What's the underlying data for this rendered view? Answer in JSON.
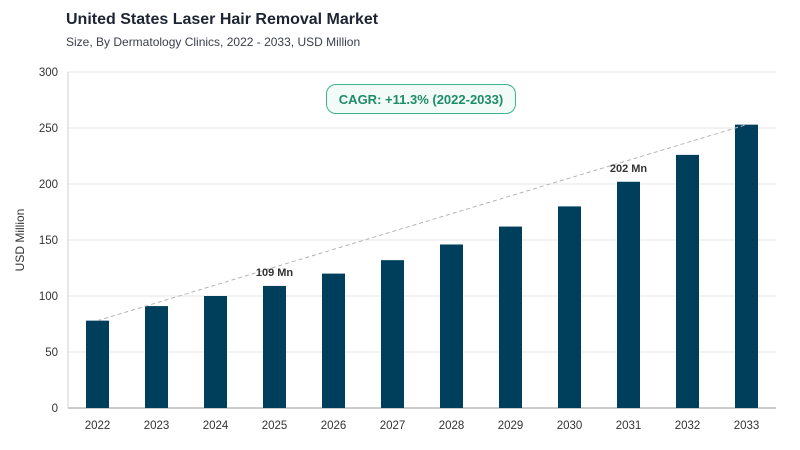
{
  "header": {
    "title": "United States Laser Hair Removal Market",
    "subtitle": "Size, By Dermatology Clinics, 2022 - 2033, USD Million"
  },
  "annotation": {
    "cagr": "CAGR: +11.3% (2022-2033)"
  },
  "colors": {
    "bar": "#003f5c",
    "grid": "#e6e6e6",
    "trend": "#b5b5b5",
    "accent": "#3db58e"
  },
  "chart_data": {
    "type": "bar",
    "title": "United States Laser Hair Removal Market",
    "subtitle": "Size, By Dermatology Clinics, 2022 - 2033, USD Million",
    "xlabel": "",
    "ylabel": "USD Million",
    "ylim": [
      0,
      300
    ],
    "yticks": [
      0,
      50,
      100,
      150,
      200,
      250,
      300
    ],
    "grid": true,
    "categories": [
      "2022",
      "2023",
      "2024",
      "2025",
      "2026",
      "2027",
      "2028",
      "2029",
      "2030",
      "2031",
      "2032",
      "2033"
    ],
    "values": [
      78,
      91,
      100,
      109,
      120,
      132,
      146,
      162,
      180,
      202,
      226,
      253
    ],
    "data_labels": [
      {
        "index": 3,
        "text": "109 Mn"
      },
      {
        "index": 9,
        "text": "202 Mn"
      }
    ],
    "trendline": {
      "from": "2022",
      "to": "2033",
      "style": "dashed"
    }
  }
}
